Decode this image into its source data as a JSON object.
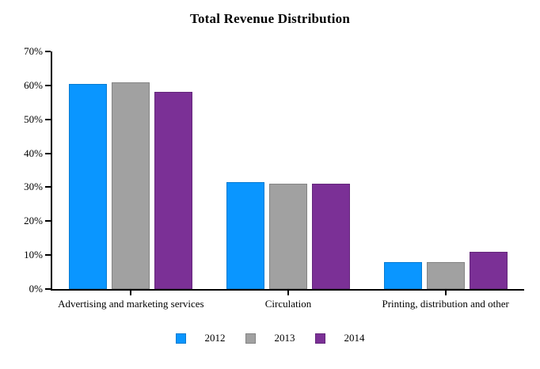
{
  "chart_data": {
    "type": "bar",
    "title": "Total Revenue Distribution",
    "categories": [
      "Advertising and marketing services",
      "Circulation",
      "Printing, distribution and other"
    ],
    "series": [
      {
        "name": "2012",
        "color": "#0A96FF",
        "values": [
          60.5,
          31.5,
          8
        ]
      },
      {
        "name": "2013",
        "color": "#A1A1A1",
        "values": [
          61,
          31,
          8
        ]
      },
      {
        "name": "2014",
        "color": "#7B3096",
        "values": [
          58,
          31,
          11
        ]
      }
    ],
    "xlabel": "",
    "ylabel": "",
    "ylim": [
      0,
      70
    ],
    "y_tick_step": 10,
    "y_tick_labels": [
      "0%",
      "10%",
      "20%",
      "30%",
      "40%",
      "50%",
      "60%",
      "70%"
    ],
    "grid": false,
    "legend_position": "bottom",
    "axis_color": "#000000",
    "background_color": "#FFFFFF"
  }
}
